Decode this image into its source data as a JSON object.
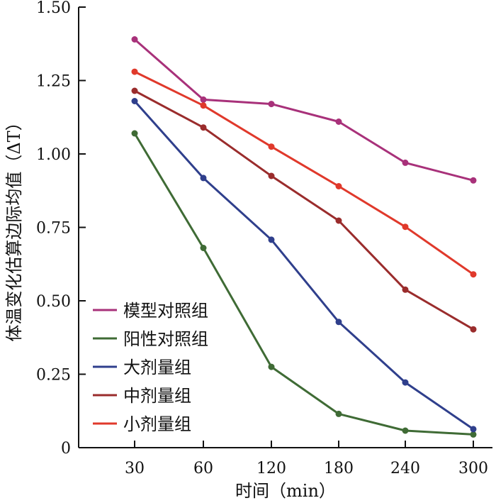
{
  "chart_data": {
    "type": "line",
    "title": "",
    "xlabel": "时间（min）",
    "ylabel": "体温变化估算边际均值（ΔT）",
    "categories": [
      "30",
      "60",
      "120",
      "180",
      "240",
      "300"
    ],
    "y_ticks": [
      "0",
      "0.25",
      "0.50",
      "0.75",
      "1.00",
      "1.25",
      "1.50"
    ],
    "ylim": [
      0,
      1.5
    ],
    "grid": false,
    "legend_position": "bottom-left",
    "series": [
      {
        "name": "模型对照组",
        "color": "#a8317a",
        "values": [
          1.39,
          1.185,
          1.17,
          1.11,
          0.97,
          0.91
        ]
      },
      {
        "name": "阳性对照组",
        "color": "#3f6b35",
        "values": [
          1.07,
          0.68,
          0.275,
          0.115,
          0.058,
          0.045
        ]
      },
      {
        "name": "大剂量组",
        "color": "#2f3f8c",
        "values": [
          1.18,
          0.918,
          0.708,
          0.428,
          0.222,
          0.063
        ]
      },
      {
        "name": "中剂量组",
        "color": "#9a2c2c",
        "values": [
          1.215,
          1.09,
          0.925,
          0.773,
          0.538,
          0.403
        ]
      },
      {
        "name": "小剂量组",
        "color": "#e0392b",
        "values": [
          1.28,
          1.165,
          1.025,
          0.89,
          0.752,
          0.59
        ]
      }
    ]
  }
}
